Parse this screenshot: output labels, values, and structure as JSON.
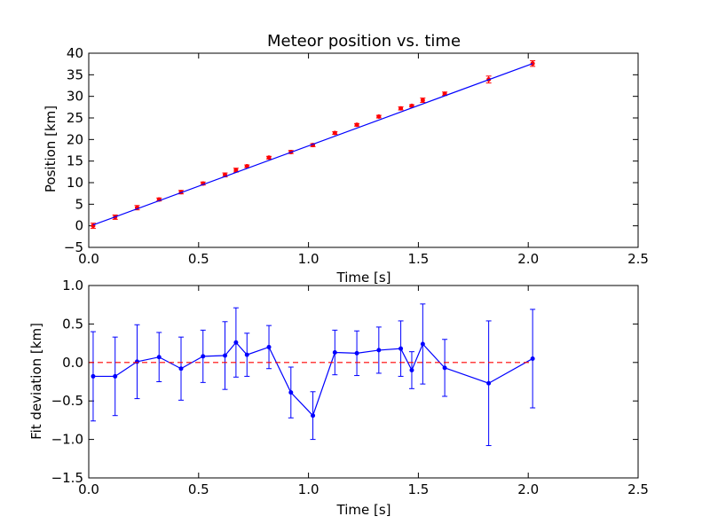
{
  "chart_data": [
    {
      "type": "scatter",
      "title": "Meteor position vs. time",
      "xlabel": "Time [s]",
      "ylabel": "Position [km]",
      "xlim": [
        0,
        2.5
      ],
      "ylim": [
        -5,
        40
      ],
      "xticks": [
        "0.0",
        "0.5",
        "1.0",
        "1.5",
        "2.0",
        "2.5"
      ],
      "yticks": [
        "−5",
        "0",
        "5",
        "10",
        "15",
        "20",
        "25",
        "30",
        "35",
        "40"
      ],
      "xtick_values": [
        0,
        0.5,
        1.0,
        1.5,
        2.0,
        2.5
      ],
      "ytick_values": [
        -5,
        0,
        5,
        10,
        15,
        20,
        25,
        30,
        35,
        40
      ],
      "grid": false,
      "series": [
        {
          "kind": "errorbar-points",
          "color": "#ff0000",
          "x": [
            0.02,
            0.12,
            0.22,
            0.32,
            0.42,
            0.52,
            0.62,
            0.67,
            0.72,
            0.82,
            0.92,
            1.02,
            1.12,
            1.22,
            1.32,
            1.42,
            1.47,
            1.52,
            1.62,
            1.82,
            2.02
          ],
          "y": [
            0.0,
            2.0,
            4.2,
            6.1,
            7.8,
            9.8,
            11.8,
            12.9,
            13.8,
            15.8,
            17.1,
            18.7,
            21.5,
            23.4,
            25.3,
            27.2,
            27.8,
            29.1,
            30.6,
            33.9,
            37.6
          ],
          "yerr": [
            0.6,
            0.5,
            0.5,
            0.35,
            0.4,
            0.35,
            0.45,
            0.45,
            0.3,
            0.3,
            0.35,
            0.35,
            0.3,
            0.3,
            0.3,
            0.35,
            0.25,
            0.5,
            0.4,
            0.8,
            0.65
          ]
        },
        {
          "kind": "fit-line",
          "color": "#0000ff",
          "x": [
            0.02,
            2.02
          ],
          "y": [
            0.2,
            37.6
          ]
        }
      ]
    },
    {
      "type": "line",
      "title": "",
      "xlabel": "Time [s]",
      "ylabel": "Fit deviation [km]",
      "xlim": [
        0,
        2.5
      ],
      "ylim": [
        -1.5,
        1.0
      ],
      "xticks": [
        "0.0",
        "0.5",
        "1.0",
        "1.5",
        "2.0",
        "2.5"
      ],
      "yticks": [
        "−1.5",
        "−1.0",
        "−0.5",
        "0.0",
        "0.5",
        "1.0"
      ],
      "xtick_values": [
        0,
        0.5,
        1.0,
        1.5,
        2.0,
        2.5
      ],
      "ytick_values": [
        -1.5,
        -1.0,
        -0.5,
        0.0,
        0.5,
        1.0
      ],
      "grid": false,
      "series": [
        {
          "kind": "errorbar-line",
          "color": "#0000ff",
          "x": [
            0.02,
            0.12,
            0.22,
            0.32,
            0.42,
            0.52,
            0.62,
            0.67,
            0.72,
            0.82,
            0.92,
            1.02,
            1.12,
            1.22,
            1.32,
            1.42,
            1.47,
            1.52,
            1.62,
            1.82,
            2.02
          ],
          "y": [
            -0.18,
            -0.18,
            0.01,
            0.07,
            -0.08,
            0.08,
            0.09,
            0.26,
            0.1,
            0.2,
            -0.39,
            -0.69,
            0.13,
            0.12,
            0.16,
            0.18,
            -0.1,
            0.24,
            -0.07,
            -0.27,
            0.05
          ],
          "yerr": [
            0.58,
            0.51,
            0.48,
            0.32,
            0.41,
            0.34,
            0.44,
            0.45,
            0.28,
            0.28,
            0.33,
            0.31,
            0.29,
            0.29,
            0.3,
            0.36,
            0.24,
            0.52,
            0.37,
            0.81,
            0.64
          ]
        },
        {
          "kind": "reference-line",
          "color": "#ff0000",
          "style": "dashed",
          "y": 0.0,
          "x": [
            0.0,
            2.02
          ]
        }
      ]
    }
  ]
}
